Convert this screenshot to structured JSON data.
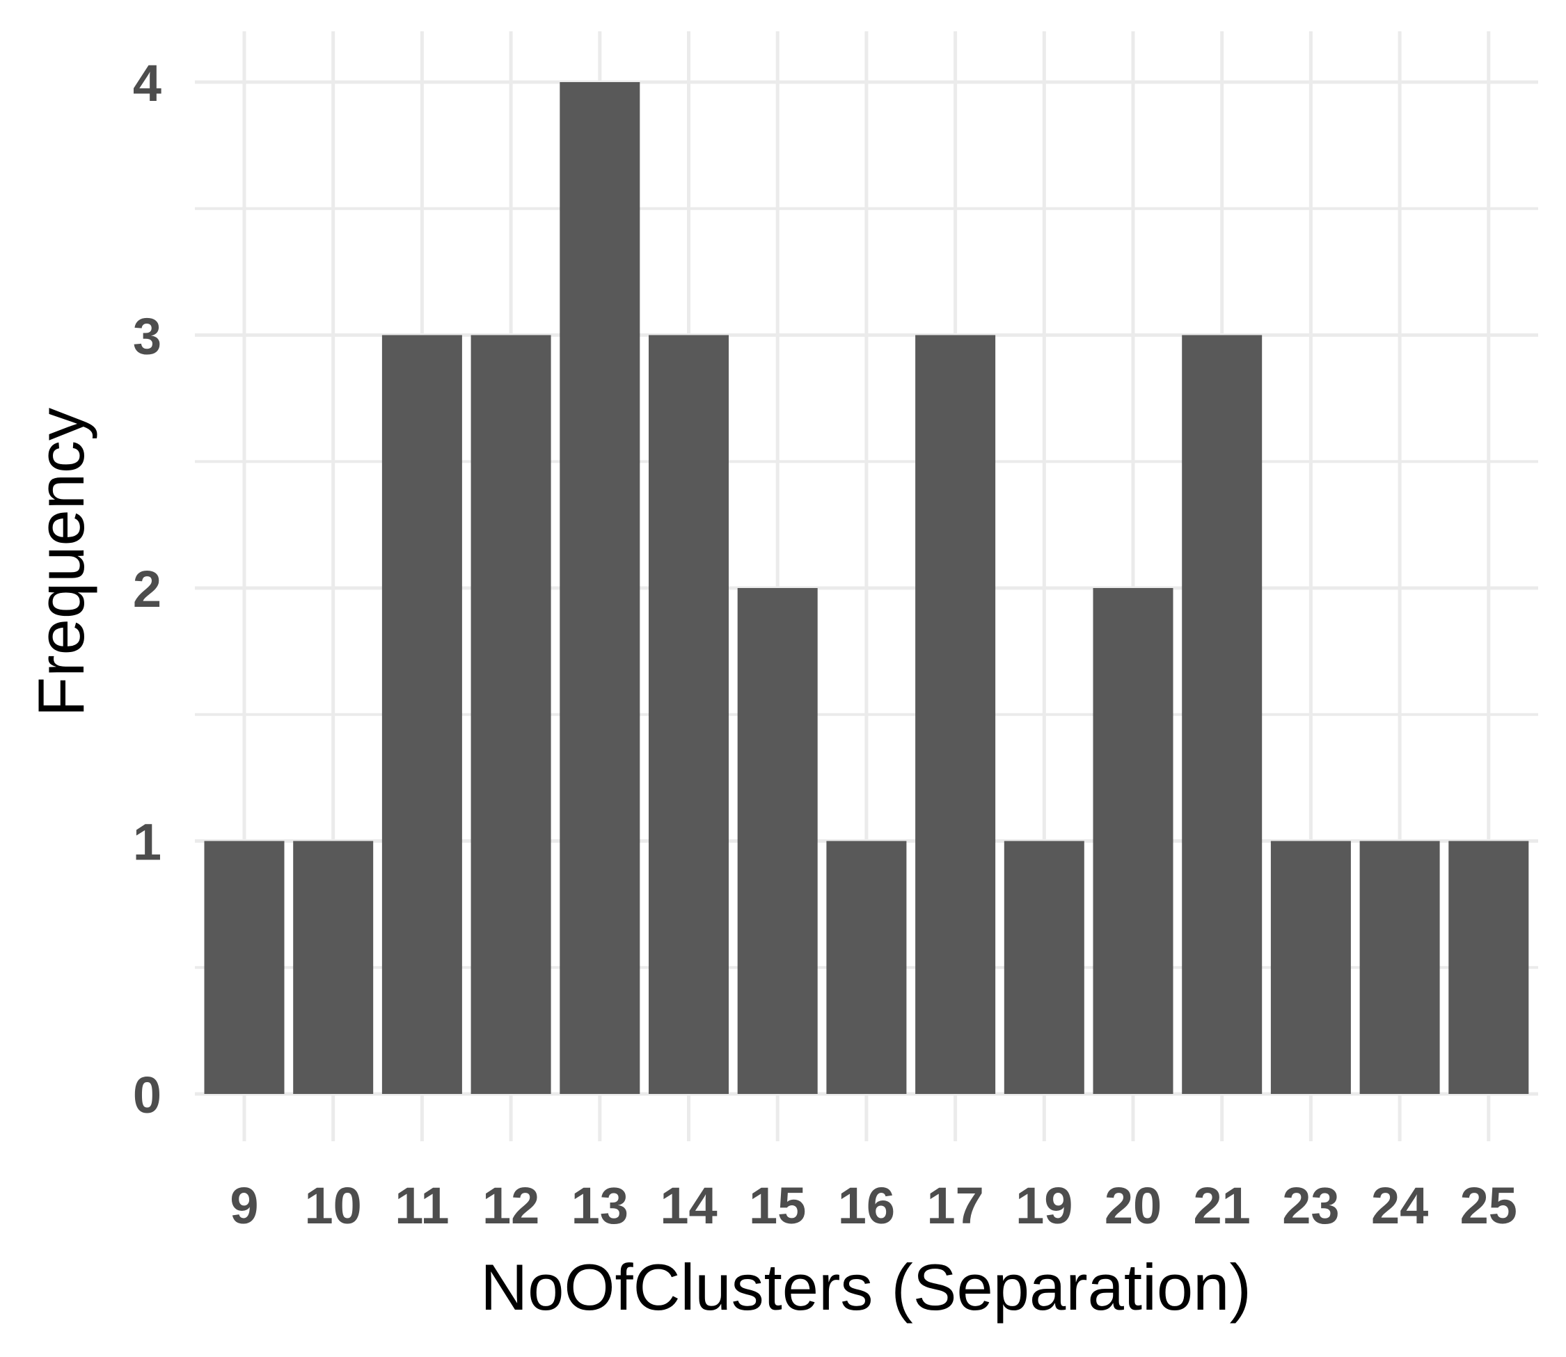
{
  "chart_data": {
    "type": "bar",
    "categories": [
      "9",
      "10",
      "11",
      "12",
      "13",
      "14",
      "15",
      "16",
      "17",
      "19",
      "20",
      "21",
      "23",
      "24",
      "25"
    ],
    "values": [
      1,
      1,
      3,
      3,
      4,
      3,
      2,
      1,
      3,
      1,
      2,
      3,
      1,
      1,
      1
    ],
    "title": "",
    "xlabel": "NoOfClusters (Separation)",
    "ylabel": "Frequency",
    "ylim": [
      0,
      4
    ],
    "yticks": [
      0,
      1,
      2,
      3,
      4
    ],
    "grid": true,
    "bar_color": "#595959",
    "grid_color": "#ebebeb",
    "tick_label_color": "#4d4d4d"
  }
}
